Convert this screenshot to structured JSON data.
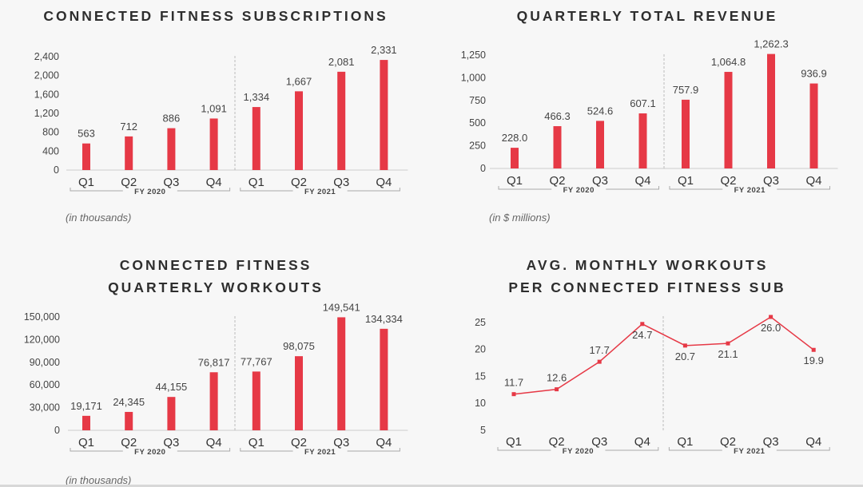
{
  "theme": {
    "bar_color": "#e63946",
    "line_color": "#e63946",
    "axis_color": "#cccccc",
    "divider_color": "#bbbbbb"
  },
  "chart_data": [
    {
      "type": "bar",
      "title": "CONNECTED FITNESS SUBSCRIPTIONS",
      "note": "(in thousands)",
      "categories": [
        "Q1",
        "Q2",
        "Q3",
        "Q4",
        "Q1",
        "Q2",
        "Q3",
        "Q4"
      ],
      "groups": [
        {
          "label": "FY 2020",
          "span": [
            0,
            3
          ]
        },
        {
          "label": "FY 2021",
          "span": [
            4,
            7
          ]
        }
      ],
      "values": [
        563,
        712,
        886,
        1091,
        1334,
        1667,
        2081,
        2331
      ],
      "value_labels": [
        "563",
        "712",
        "886",
        "1,091",
        "1,334",
        "1,667",
        "2,081",
        "2,331"
      ],
      "ylim": [
        0,
        2400
      ],
      "yticks": [
        0,
        400,
        800,
        1200,
        1600,
        2000,
        2400
      ],
      "ytick_labels": [
        "0",
        "400",
        "800",
        "1,200",
        "1,600",
        "2,000",
        "2,400"
      ]
    },
    {
      "type": "bar",
      "title": "QUARTERLY TOTAL REVENUE",
      "note": "(in $ millions)",
      "categories": [
        "Q1",
        "Q2",
        "Q3",
        "Q4",
        "Q1",
        "Q2",
        "Q3",
        "Q4"
      ],
      "groups": [
        {
          "label": "FY 2020",
          "span": [
            0,
            3
          ]
        },
        {
          "label": "FY 2021",
          "span": [
            4,
            7
          ]
        }
      ],
      "values": [
        228.0,
        466.3,
        524.6,
        607.1,
        757.9,
        1064.8,
        1262.3,
        936.9
      ],
      "value_labels": [
        "228.0",
        "466.3",
        "524.6",
        "607.1",
        "757.9",
        "1,064.8",
        "1,262.3",
        "936.9"
      ],
      "ylim": [
        0,
        1250
      ],
      "yticks": [
        0,
        250,
        500,
        750,
        1000,
        1250
      ],
      "ytick_labels": [
        "0",
        "250",
        "500",
        "750",
        "1,000",
        "1,250"
      ]
    },
    {
      "type": "bar",
      "title": "CONNECTED FITNESS\nQUARTERLY WORKOUTS",
      "note": "(in thousands)",
      "categories": [
        "Q1",
        "Q2",
        "Q3",
        "Q4",
        "Q1",
        "Q2",
        "Q3",
        "Q4"
      ],
      "groups": [
        {
          "label": "FY 2020",
          "span": [
            0,
            3
          ]
        },
        {
          "label": "FY 2021",
          "span": [
            4,
            7
          ]
        }
      ],
      "values": [
        19171,
        24345,
        44155,
        76817,
        77767,
        98075,
        149541,
        134334
      ],
      "value_labels": [
        "19,171",
        "24,345",
        "44,155",
        "76,817",
        "77,767",
        "98,075",
        "149,541",
        "134,334"
      ],
      "ylim": [
        0,
        150000
      ],
      "yticks": [
        0,
        30000,
        60000,
        90000,
        120000,
        150000
      ],
      "ytick_labels": [
        "0",
        "30,000",
        "60,000",
        "90,000",
        "120,000",
        "150,000"
      ]
    },
    {
      "type": "line",
      "title": "AVG. MONTHLY WORKOUTS\nPER CONNECTED FITNESS SUB",
      "categories": [
        "Q1",
        "Q2",
        "Q3",
        "Q4",
        "Q1",
        "Q2",
        "Q3",
        "Q4"
      ],
      "groups": [
        {
          "label": "FY 2020",
          "span": [
            0,
            3
          ]
        },
        {
          "label": "FY 2021",
          "span": [
            4,
            7
          ]
        }
      ],
      "values": [
        11.7,
        12.6,
        17.7,
        24.7,
        20.7,
        21.1,
        26.0,
        19.9
      ],
      "value_labels": [
        "11.7",
        "12.6",
        "17.7",
        "24.7",
        "20.7",
        "21.1",
        "26.0",
        "19.9"
      ],
      "ylim": [
        5,
        26
      ],
      "yticks": [
        5,
        10,
        15,
        20,
        25
      ],
      "ytick_labels": [
        "5",
        "10",
        "15",
        "20",
        "25"
      ]
    }
  ]
}
